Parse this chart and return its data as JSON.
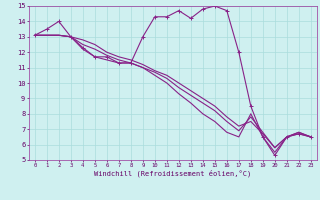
{
  "xlabel": "Windchill (Refroidissement éolien,°C)",
  "background_color": "#cff0f0",
  "grid_color": "#aadddd",
  "line_color": "#882288",
  "xlim": [
    -0.5,
    23.5
  ],
  "ylim": [
    5,
    15
  ],
  "series1_x": [
    0,
    1,
    2,
    3,
    4,
    5,
    6,
    7,
    8,
    9,
    10,
    11,
    12,
    13,
    14,
    15,
    16,
    17,
    18,
    19,
    20,
    21,
    22,
    23
  ],
  "series1_y": [
    13.1,
    13.5,
    14.0,
    13.0,
    12.3,
    11.7,
    11.7,
    11.3,
    11.3,
    13.0,
    14.3,
    14.3,
    14.7,
    14.2,
    14.8,
    15.0,
    14.7,
    12.0,
    8.5,
    6.5,
    5.3,
    6.5,
    6.7,
    6.5
  ],
  "series2_x": [
    0,
    1,
    2,
    3,
    4,
    5,
    6,
    7,
    8,
    9,
    10,
    11,
    12,
    13,
    14,
    15,
    16,
    17,
    18,
    19,
    20,
    21,
    22,
    23
  ],
  "series2_y": [
    13.1,
    13.1,
    13.1,
    13.0,
    12.8,
    12.5,
    12.0,
    11.7,
    11.5,
    11.2,
    10.8,
    10.5,
    10.0,
    9.5,
    9.0,
    8.5,
    7.8,
    7.2,
    7.5,
    6.7,
    5.8,
    6.5,
    6.8,
    6.5
  ],
  "series3_x": [
    0,
    1,
    2,
    3,
    4,
    5,
    6,
    7,
    8,
    9,
    10,
    11,
    12,
    13,
    14,
    15,
    16,
    17,
    18,
    19,
    20,
    21,
    22,
    23
  ],
  "series3_y": [
    13.1,
    13.1,
    13.1,
    13.0,
    12.5,
    12.2,
    11.8,
    11.5,
    11.3,
    11.0,
    10.7,
    10.3,
    9.7,
    9.2,
    8.7,
    8.2,
    7.5,
    6.9,
    7.8,
    6.8,
    5.8,
    6.5,
    6.8,
    6.5
  ],
  "series4_x": [
    0,
    1,
    2,
    3,
    4,
    5,
    6,
    7,
    8,
    9,
    10,
    11,
    12,
    13,
    14,
    15,
    16,
    17,
    18,
    19,
    20,
    21,
    22,
    23
  ],
  "series4_y": [
    13.1,
    13.1,
    13.1,
    13.0,
    12.2,
    11.7,
    11.5,
    11.3,
    11.3,
    11.0,
    10.5,
    10.0,
    9.3,
    8.7,
    8.0,
    7.5,
    6.8,
    6.5,
    8.0,
    6.5,
    5.5,
    6.5,
    6.7,
    6.5
  ],
  "xtick_labels": [
    "0",
    "1",
    "2",
    "3",
    "4",
    "5",
    "6",
    "7",
    "8",
    "9",
    "10",
    "11",
    "12",
    "13",
    "14",
    "15",
    "16",
    "17",
    "18",
    "19",
    "20",
    "21",
    "22",
    "23"
  ],
  "ytick_labels": [
    "5",
    "6",
    "7",
    "8",
    "9",
    "10",
    "11",
    "12",
    "13",
    "14",
    "15"
  ]
}
